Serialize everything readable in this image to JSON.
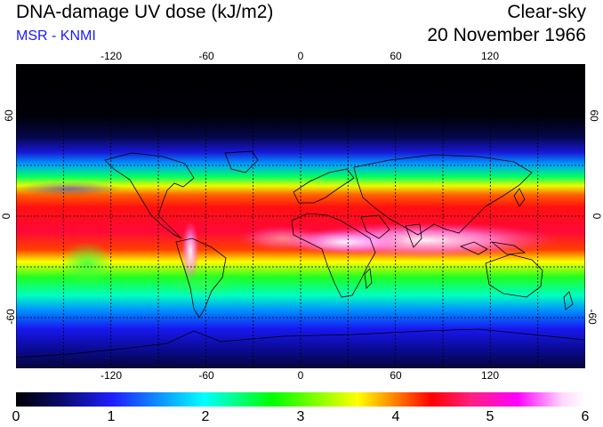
{
  "header": {
    "title": "DNA-damage UV dose (kJ/m2)",
    "source": "MSR - KNMI",
    "sky_condition": "Clear-sky",
    "date": "20 November 1966"
  },
  "map": {
    "longitude_ticks": [
      "-120",
      "-60",
      "0",
      "60",
      "120"
    ],
    "longitude_values": [
      -120,
      -60,
      0,
      60,
      120
    ],
    "latitude_ticks": [
      "60",
      "0",
      "-60"
    ],
    "latitude_values": [
      60,
      0,
      -60
    ],
    "lon_range": [
      -180,
      180
    ],
    "lat_range": [
      -90,
      90
    ],
    "grid": "dotted 30-degree"
  },
  "colorbar": {
    "labels": [
      "0",
      "1",
      "2",
      "3",
      "4",
      "5",
      "6"
    ],
    "values": [
      0,
      1,
      2,
      3,
      4,
      5,
      6
    ],
    "colors": [
      "#000000",
      "#0a0a6e",
      "#1e1eff",
      "#00ffff",
      "#00ff00",
      "#ffff00",
      "#ff8c00",
      "#ff0000",
      "#ff2080",
      "#ff00ff",
      "#ffd8ff",
      "#ffffff"
    ]
  },
  "colors": {
    "source_text": "#1a1aff"
  }
}
